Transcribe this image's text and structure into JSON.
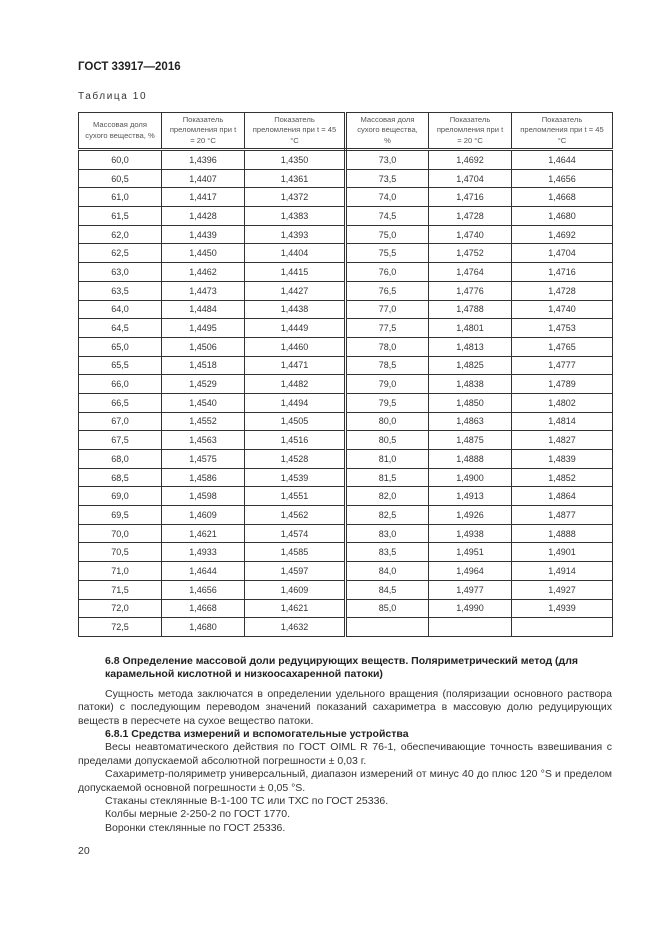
{
  "header": {
    "doc_code": "ГОСТ 33917—2016"
  },
  "table": {
    "caption": "Таблица 10",
    "columns": [
      "Массовая доля сухого вещества, %",
      "Показатель преломления при t = 20 °C",
      "Показатель преломления при t = 45 °C",
      "Массовая доля сухого вещества, %",
      "Показатель преломления при t = 20 °C",
      "Показатель преломления при t = 45 °C"
    ],
    "rows": [
      [
        "60,0",
        "1,4396",
        "1,4350",
        "73,0",
        "1,4692",
        "1,4644"
      ],
      [
        "60,5",
        "1,4407",
        "1,4361",
        "73,5",
        "1,4704",
        "1,4656"
      ],
      [
        "61,0",
        "1,4417",
        "1,4372",
        "74,0",
        "1,4716",
        "1,4668"
      ],
      [
        "61,5",
        "1,4428",
        "1,4383",
        "74,5",
        "1,4728",
        "1,4680"
      ],
      [
        "62,0",
        "1,4439",
        "1,4393",
        "75,0",
        "1,4740",
        "1,4692"
      ],
      [
        "62,5",
        "1,4450",
        "1,4404",
        "75,5",
        "1,4752",
        "1,4704"
      ],
      [
        "63,0",
        "1,4462",
        "1,4415",
        "76,0",
        "1,4764",
        "1,4716"
      ],
      [
        "63,5",
        "1,4473",
        "1,4427",
        "76,5",
        "1,4776",
        "1,4728"
      ],
      [
        "64,0",
        "1,4484",
        "1,4438",
        "77,0",
        "1,4788",
        "1,4740"
      ],
      [
        "64,5",
        "1,4495",
        "1,4449",
        "77,5",
        "1,4801",
        "1,4753"
      ],
      [
        "65,0",
        "1,4506",
        "1,4460",
        "78,0",
        "1,4813",
        "1,4765"
      ],
      [
        "65,5",
        "1,4518",
        "1,4471",
        "78,5",
        "1,4825",
        "1,4777"
      ],
      [
        "66,0",
        "1,4529",
        "1,4482",
        "79,0",
        "1,4838",
        "1,4789"
      ],
      [
        "66,5",
        "1,4540",
        "1,4494",
        "79,5",
        "1,4850",
        "1,4802"
      ],
      [
        "67,0",
        "1,4552",
        "1,4505",
        "80,0",
        "1,4863",
        "1,4814"
      ],
      [
        "67,5",
        "1,4563",
        "1,4516",
        "80,5",
        "1,4875",
        "1,4827"
      ],
      [
        "68,0",
        "1,4575",
        "1,4528",
        "81,0",
        "1,4888",
        "1,4839"
      ],
      [
        "68,5",
        "1,4586",
        "1,4539",
        "81,5",
        "1,4900",
        "1,4852"
      ],
      [
        "69,0",
        "1,4598",
        "1,4551",
        "82,0",
        "1,4913",
        "1,4864"
      ],
      [
        "69,5",
        "1,4609",
        "1,4562",
        "82,5",
        "1,4926",
        "1,4877"
      ],
      [
        "70,0",
        "1,4621",
        "1,4574",
        "83,0",
        "1,4938",
        "1,4888"
      ],
      [
        "70,5",
        "1,4933",
        "1,4585",
        "83,5",
        "1,4951",
        "1,4901"
      ],
      [
        "71,0",
        "1,4644",
        "1,4597",
        "84,0",
        "1,4964",
        "1,4914"
      ],
      [
        "71,5",
        "1,4656",
        "1,4609",
        "84,5",
        "1,4977",
        "1,4927"
      ],
      [
        "72,0",
        "1,4668",
        "1,4621",
        "85,0",
        "1,4990",
        "1,4939"
      ],
      [
        "72,5",
        "1,4680",
        "1,4632",
        "",
        "",
        ""
      ]
    ]
  },
  "body": {
    "section_heading": "6.8 Определение массовой доли редуцирующих веществ. Поляриметрический метод (для карамельной кислотной и низкоосахаренной патоки)",
    "paragraphs": [
      "Сущность метода заключатся в определении удельного вращения (поляризации основного раствора патоки) с последующим переводом значений показаний сахариметра в массовую долю редуцирующих веществ в пересчете на сухое вещество патоки."
    ],
    "subsection_heading": "6.8.1 Средства измерений и вспомогательные устройства",
    "items": [
      "Весы неавтоматического действия по ГОСТ OIML R 76-1, обеспечивающие точность взвешивания с пределами допускаемой абсолютной погрешности ± 0,03 г.",
      "Сахариметр-поляриметр универсальный, диапазон измерений от минус 40 до плюс 120 °S и пределом допускаемой основной погрешности ± 0,05 °S.",
      "Стаканы стеклянные В-1-100 ТС или ТХС по ГОСТ 25336.",
      "Колбы мерные 2-250-2 по ГОСТ 1770.",
      "Воронки стеклянные по ГОСТ 25336."
    ]
  },
  "footer": {
    "page_number": "20"
  }
}
